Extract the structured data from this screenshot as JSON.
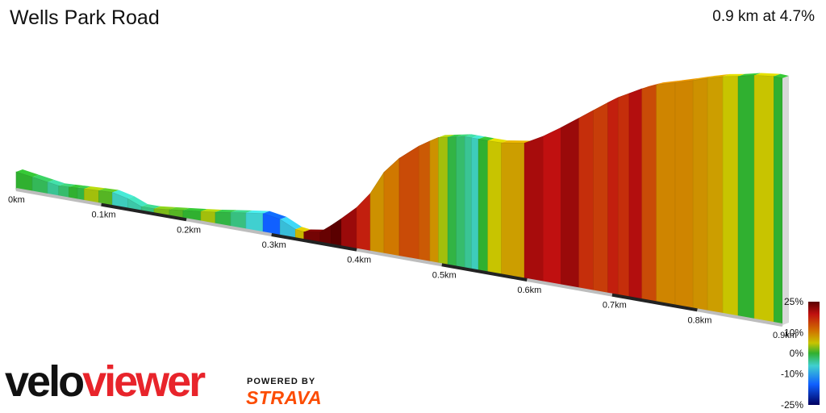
{
  "header": {
    "title": "Wells Park Road",
    "summary": "0.9 km at 4.7%"
  },
  "branding": {
    "logo_part1": "velo",
    "logo_part2": "viewer",
    "powered_by": "POWERED BY",
    "strava": "STRAVA",
    "logo_color": "#e8242b",
    "strava_color": "#fc4c02"
  },
  "chart_data": {
    "type": "area",
    "title": "Wells Park Road",
    "xlabel": "",
    "ylabel": "",
    "x_unit": "km",
    "distance_ticks": [
      "0km",
      "0.1km",
      "0.2km",
      "0.3km",
      "0.4km",
      "0.5km",
      "0.6km",
      "0.7km",
      "0.8km",
      "0.9km"
    ],
    "profile": [
      {
        "x": 0.0,
        "g": 0
      },
      {
        "x": 0.019,
        "g": -2
      },
      {
        "x": 0.037,
        "g": -5
      },
      {
        "x": 0.05,
        "g": -3
      },
      {
        "x": 0.062,
        "g": 0
      },
      {
        "x": 0.072,
        "g": -1
      },
      {
        "x": 0.08,
        "g": 3
      },
      {
        "x": 0.097,
        "g": 1
      },
      {
        "x": 0.113,
        "g": -7
      },
      {
        "x": 0.131,
        "g": -6
      },
      {
        "x": 0.147,
        "g": -4
      },
      {
        "x": 0.162,
        "g": 2
      },
      {
        "x": 0.18,
        "g": 1
      },
      {
        "x": 0.196,
        "g": 0
      },
      {
        "x": 0.217,
        "g": 3
      },
      {
        "x": 0.234,
        "g": -1
      },
      {
        "x": 0.252,
        "g": -4
      },
      {
        "x": 0.27,
        "g": -8
      },
      {
        "x": 0.29,
        "g": -14
      },
      {
        "x": 0.31,
        "g": -9
      },
      {
        "x": 0.328,
        "g": 5
      },
      {
        "x": 0.338,
        "g": 23
      },
      {
        "x": 0.357,
        "g": 24
      },
      {
        "x": 0.37,
        "g": 25
      },
      {
        "x": 0.382,
        "g": 20
      },
      {
        "x": 0.4,
        "g": 16
      },
      {
        "x": 0.416,
        "g": 8
      },
      {
        "x": 0.432,
        "g": 10
      },
      {
        "x": 0.45,
        "g": 13
      },
      {
        "x": 0.473,
        "g": 12
      },
      {
        "x": 0.486,
        "g": 8
      },
      {
        "x": 0.496,
        "g": 3
      },
      {
        "x": 0.507,
        "g": -1
      },
      {
        "x": 0.517,
        "g": -3
      },
      {
        "x": 0.527,
        "g": -5
      },
      {
        "x": 0.535,
        "g": -7
      },
      {
        "x": 0.543,
        "g": 0
      },
      {
        "x": 0.554,
        "g": 4
      },
      {
        "x": 0.57,
        "g": 7
      },
      {
        "x": 0.597,
        "g": 19
      },
      {
        "x": 0.619,
        "g": 17
      },
      {
        "x": 0.64,
        "g": 20
      },
      {
        "x": 0.661,
        "g": 15
      },
      {
        "x": 0.678,
        "g": 14
      },
      {
        "x": 0.695,
        "g": 16
      },
      {
        "x": 0.707,
        "g": 15
      },
      {
        "x": 0.72,
        "g": 18
      },
      {
        "x": 0.735,
        "g": 13
      },
      {
        "x": 0.752,
        "g": 9
      },
      {
        "x": 0.774,
        "g": 9
      },
      {
        "x": 0.795,
        "g": 8
      },
      {
        "x": 0.812,
        "g": 7
      },
      {
        "x": 0.83,
        "g": 4
      },
      {
        "x": 0.848,
        "g": 0
      },
      {
        "x": 0.867,
        "g": 4
      },
      {
        "x": 0.89,
        "g": 0
      }
    ],
    "profile_end_km": 0.9,
    "gradient_scale": {
      "labels": [
        "25%",
        "10%",
        "0%",
        "-10%",
        "-25%"
      ],
      "values": [
        25,
        10,
        0,
        -10,
        -25
      ]
    },
    "legend_placement": "bottom-right",
    "grid": false
  }
}
